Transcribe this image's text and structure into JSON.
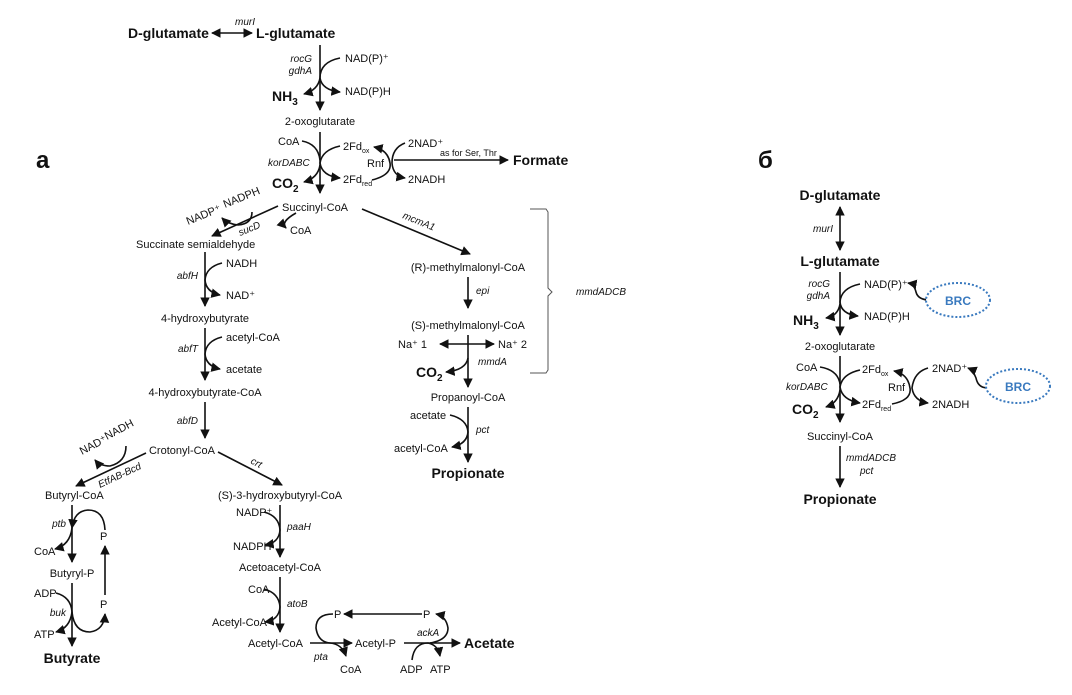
{
  "panel_a": {
    "label": "а",
    "d_glutamate": "D-glutamate",
    "murI": "murI",
    "l_glutamate": "L-glutamate",
    "rocG": "rocG",
    "gdhA": "gdhA",
    "nadp_plus": "NAD(P)⁺",
    "nadph": "NAD(P)H",
    "nh3": "NH",
    "nh3_sub": "3",
    "oxoglutarate": "2-oxoglutarate",
    "coa1": "CoA",
    "korDABC": "korDABC",
    "co2": "CO",
    "co2_sub": "2",
    "fd_ox": "2Fd",
    "fd_ox_sub": "ox",
    "fd_red": "2Fd",
    "fd_red_sub": "red",
    "rnf": "Rnf",
    "nad2": "2NAD⁺",
    "nadh2": "2NADH",
    "as_for": "as for Ser, Thr",
    "formate": "Formate",
    "succinyl_coa": "Succinyl-CoA",
    "nadp_plus2": "NADP⁺",
    "nadph2": "NADPH",
    "sucD": "sucD",
    "coa2": "CoA",
    "succ_semi": "Succinate semialdehyde",
    "abfH": "abfH",
    "nadh3": "NADH",
    "nad3": "NAD⁺",
    "hb4": "4-hydroxybutyrate",
    "abfT": "abfT",
    "acetyl_coa1": "acetyl-CoA",
    "acetate1": "acetate",
    "hb4_coa": "4-hydroxybutyrate-CoA",
    "abfD": "abfD",
    "crotonyl": "Crotonyl-CoA",
    "nad4": "NAD⁺",
    "nadh4": "NADH",
    "etf": "EtfAB-Bcd",
    "crt": "crt",
    "butyryl_coa": "Butyryl-CoA",
    "ptb": "ptb",
    "coa3": "CoA",
    "p1": "P",
    "p2": "P",
    "butyryl_p": "Butyryl-P",
    "adp1": "ADP",
    "buk": "buk",
    "atp1": "ATP",
    "butyrate": "Butyrate",
    "hbc3": "(S)-3-hydroxybutyryl-CoA",
    "nadp5": "NADP⁺",
    "paaH": "paaH",
    "nadph5": "NADPH",
    "acetoacetyl": "Acetoacetyl-CoA",
    "coa4": "CoA",
    "atoB": "atoB",
    "acetyl_coa2": "Acetyl-CoA",
    "acetyl_coa3": "Acetyl-CoA",
    "pta": "pta",
    "coa5": "CoA",
    "acetyl_p": "Acetyl-P",
    "p3": "P",
    "p4": "P",
    "ackA": "ackA",
    "adp2": "ADP",
    "atp2": "ATP",
    "acetate_final": "Acetate",
    "mcmA1": "mcmA1",
    "r_mm": "(R)-methylmalonyl-CoA",
    "epi": "epi",
    "s_mm": "(S)-methylmalonyl-CoA",
    "na1": "Na⁺ 1",
    "na2": "Na⁺ 2",
    "mmdA": "mmdA",
    "co2b": "CO",
    "co2b_sub": "2",
    "propanoyl": "Propanoyl-CoA",
    "acetate2": "acetate",
    "pct": "pct",
    "acetyl_coa4": "acetyl-CoA",
    "propionate": "Propionate",
    "mmdADCB": "mmdADCB"
  },
  "panel_b": {
    "label": "б",
    "d_glutamate": "D-glutamate",
    "murI": "murI",
    "l_glutamate": "L-glutamate",
    "rocG": "rocG",
    "gdhA": "gdhA",
    "nadp_plus": "NAD(P)⁺",
    "nadph": "NAD(P)H",
    "nh3": "NH",
    "nh3_sub": "3",
    "brc1": "BRC",
    "oxoglutarate": "2-oxoglutarate",
    "coa": "CoA",
    "korDABC": "korDABC",
    "co2": "CO",
    "co2_sub": "2",
    "fd_ox": "2Fd",
    "fd_ox_sub": "ox",
    "fd_red": "2Fd",
    "fd_red_sub": "red",
    "rnf": "Rnf",
    "nad2": "2NAD⁺",
    "nadh2": "2NADH",
    "brc2": "BRC",
    "succinyl_coa": "Succinyl-CoA",
    "mmdADCB": "mmdADCB",
    "pct": "pct",
    "propionate": "Propionate"
  },
  "colors": {
    "brc": "#3a7abf",
    "ink": "#111111"
  }
}
